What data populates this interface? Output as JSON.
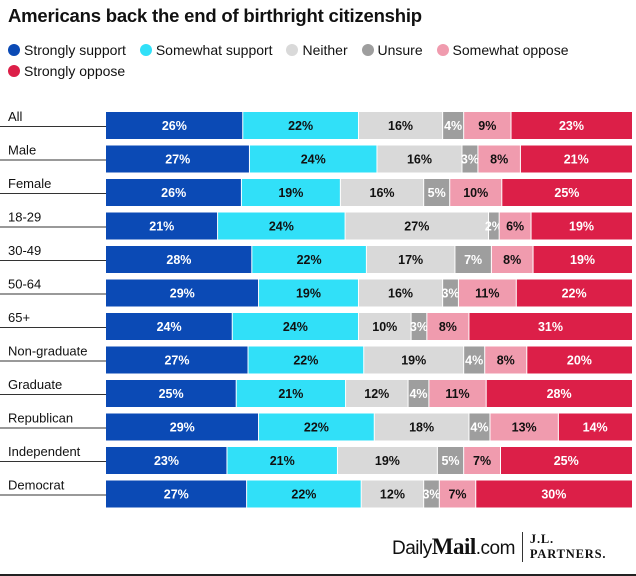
{
  "title": "Americans back the end of birthright citizenship",
  "legend": [
    {
      "label": "Strongly support",
      "color": "#0b4ab5"
    },
    {
      "label": "Somewhat support",
      "color": "#31e0f8"
    },
    {
      "label": "Neither",
      "color": "#d9d9d9"
    },
    {
      "label": "Unsure",
      "color": "#9e9e9e"
    },
    {
      "label": "Somewhat oppose",
      "color": "#f09bae"
    },
    {
      "label": "Strongly oppose",
      "color": "#dc1f48"
    }
  ],
  "footer": {
    "brand_daily": "Daily",
    "brand_mail": "Mail",
    "brand_com": ".com",
    "partner_line1": "J.L.",
    "partner_line2": "PARTNERS."
  },
  "chart_data": {
    "type": "bar",
    "orientation": "horizontal",
    "stacked": true,
    "unit": "%",
    "categories": [
      "All",
      "Male",
      "Female",
      "18-29",
      "30-49",
      "50-64",
      "65+",
      "Non-graduate",
      "Graduate",
      "Republican",
      "Independent",
      "Democrat"
    ],
    "series": [
      {
        "name": "Strongly support",
        "color": "#0b4ab5",
        "values": [
          26,
          27,
          26,
          21,
          28,
          29,
          24,
          27,
          25,
          29,
          23,
          27
        ]
      },
      {
        "name": "Somewhat support",
        "color": "#31e0f8",
        "values": [
          22,
          24,
          19,
          24,
          22,
          19,
          24,
          22,
          21,
          22,
          21,
          22
        ]
      },
      {
        "name": "Neither",
        "color": "#d9d9d9",
        "values": [
          16,
          16,
          16,
          27,
          17,
          16,
          10,
          19,
          12,
          18,
          19,
          12
        ]
      },
      {
        "name": "Unsure",
        "color": "#9e9e9e",
        "values": [
          4,
          3,
          5,
          2,
          7,
          3,
          3,
          4,
          4,
          4,
          5,
          3
        ]
      },
      {
        "name": "Somewhat oppose",
        "color": "#f09bae",
        "values": [
          9,
          8,
          10,
          6,
          8,
          11,
          8,
          8,
          11,
          13,
          7,
          7
        ]
      },
      {
        "name": "Strongly oppose",
        "color": "#dc1f48",
        "values": [
          23,
          21,
          25,
          19,
          19,
          22,
          31,
          20,
          28,
          14,
          25,
          30
        ]
      }
    ]
  }
}
